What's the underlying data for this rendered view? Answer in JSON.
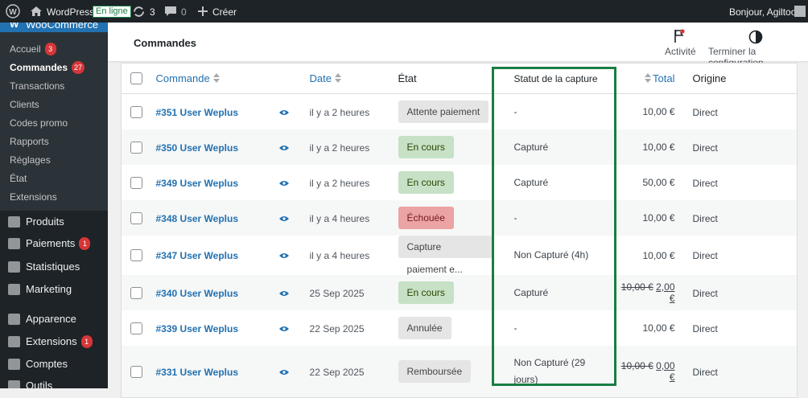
{
  "admin_bar": {
    "site": "WordPress",
    "status": "En ligne",
    "updates": "3",
    "comments": "0",
    "new": "Créer",
    "greeting": "Bonjour, Agiltoo"
  },
  "menu": {
    "woocommerce": "WooCommerce",
    "submenu": [
      {
        "label": "Accueil",
        "badge": "3"
      },
      {
        "label": "Commandes",
        "badge": "27"
      },
      {
        "label": "Transactions"
      },
      {
        "label": "Clients"
      },
      {
        "label": "Codes promo"
      },
      {
        "label": "Rapports"
      },
      {
        "label": "Réglages"
      },
      {
        "label": "État"
      },
      {
        "label": "Extensions"
      }
    ],
    "items": [
      {
        "label": "Produits"
      },
      {
        "label": "Paiements",
        "badge": "1"
      },
      {
        "label": "Statistiques"
      },
      {
        "label": "Marketing"
      },
      {
        "label": "Apparence"
      },
      {
        "label": "Extensions",
        "badge": "1"
      },
      {
        "label": "Comptes"
      },
      {
        "label": "Outils"
      }
    ]
  },
  "header": {
    "title": "Commandes",
    "actions": [
      "Activité",
      "Terminer la configuration"
    ]
  },
  "table": {
    "columns": [
      "Commande",
      "Date",
      "État",
      "Statut de la capture",
      "Total",
      "Origine"
    ],
    "rows": [
      {
        "order": "#351 User Weplus",
        "date": "il y a 2 heures",
        "status": "Attente paiement",
        "status_color": "gray",
        "capture": "-",
        "total": "10,00 €",
        "origin": "Direct"
      },
      {
        "order": "#350 User Weplus",
        "date": "il y a 2 heures",
        "status": "En cours",
        "status_color": "green",
        "capture": "Capturé",
        "total": "10,00 €",
        "origin": "Direct"
      },
      {
        "order": "#349 User Weplus",
        "date": "il y a 2 heures",
        "status": "En cours",
        "status_color": "green",
        "capture": "Capturé",
        "total": "50,00 €",
        "origin": "Direct"
      },
      {
        "order": "#348 User Weplus",
        "date": "il y a 4 heures",
        "status": "Échouée",
        "status_color": "red",
        "capture": "-",
        "total": "10,00 €",
        "origin": "Direct"
      },
      {
        "order": "#347 User Weplus",
        "date": "il y a 4 heures",
        "status": "Capture paiement e...",
        "status_color": "gray",
        "capture": "Non Capturé (4h)",
        "total": "10,00 €",
        "origin": "Direct"
      },
      {
        "order": "#340 User Weplus",
        "date": "25 Sep 2025",
        "status": "En cours",
        "status_color": "green",
        "capture": "Capturé",
        "total_before": "10,00 €",
        "total": "2,00 €",
        "origin": "Direct"
      },
      {
        "order": "#339 User Weplus",
        "date": "22 Sep 2025",
        "status": "Annulée",
        "status_color": "gray",
        "capture": "-",
        "total": "10,00 €",
        "origin": "Direct"
      },
      {
        "order": "#331 User Weplus",
        "date": "22 Sep 2025",
        "status": "Remboursée",
        "status_color": "gray",
        "capture": "Non Capturé (29 jours)",
        "total_before": "10,00 €",
        "total": "0,00 €",
        "origin": "Direct"
      }
    ]
  }
}
